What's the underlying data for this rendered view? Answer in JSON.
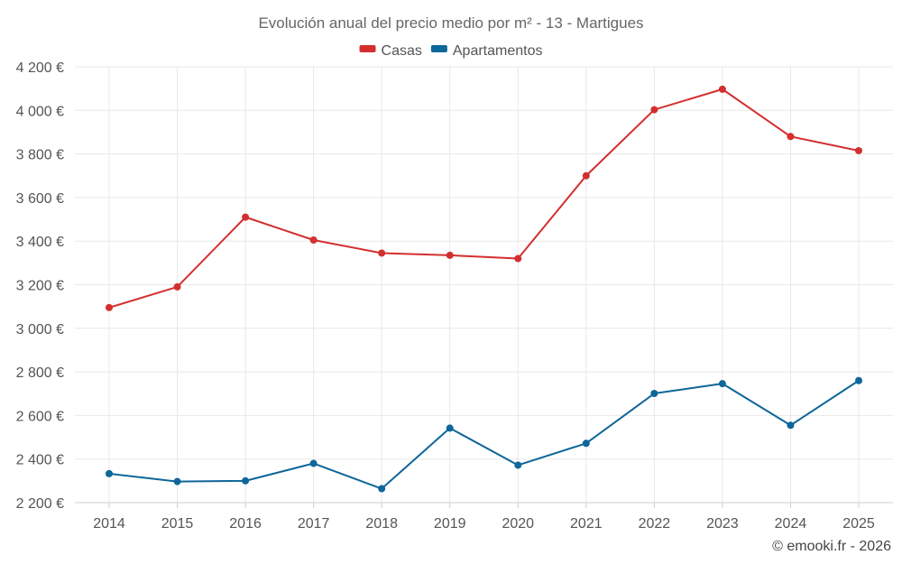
{
  "chart_data": {
    "type": "line",
    "title": "Evolución anual del precio medio por m² - 13 - Martigues",
    "categories": [
      "2014",
      "2015",
      "2016",
      "2017",
      "2018",
      "2019",
      "2020",
      "2021",
      "2022",
      "2023",
      "2024",
      "2025"
    ],
    "series": [
      {
        "name": "Casas",
        "color": "#d32f2f",
        "values": [
          3095,
          3190,
          3510,
          3405,
          3345,
          3335,
          3320,
          3700,
          4003,
          4097,
          3880,
          3815
        ]
      },
      {
        "name": "Apartamentos",
        "color": "#0e6699",
        "values": [
          2333,
          2297,
          2300,
          2380,
          2264,
          2542,
          2372,
          2472,
          2701,
          2746,
          2555,
          2760
        ]
      }
    ],
    "ylim": [
      2200,
      4200
    ],
    "yticks": [
      2200,
      2400,
      2600,
      2800,
      3000,
      3200,
      3400,
      3600,
      3800,
      4000,
      4200
    ],
    "ytick_labels": [
      "2 200 €",
      "2 400 €",
      "2 600 €",
      "2 800 €",
      "3 000 €",
      "3 200 €",
      "3 400 €",
      "3 600 €",
      "3 800 €",
      "4 000 €",
      "4 200 €"
    ],
    "xlabel": "",
    "ylabel": "",
    "grid": true,
    "legend_position": "top-center",
    "credit": "© emooki.fr - 2026"
  }
}
